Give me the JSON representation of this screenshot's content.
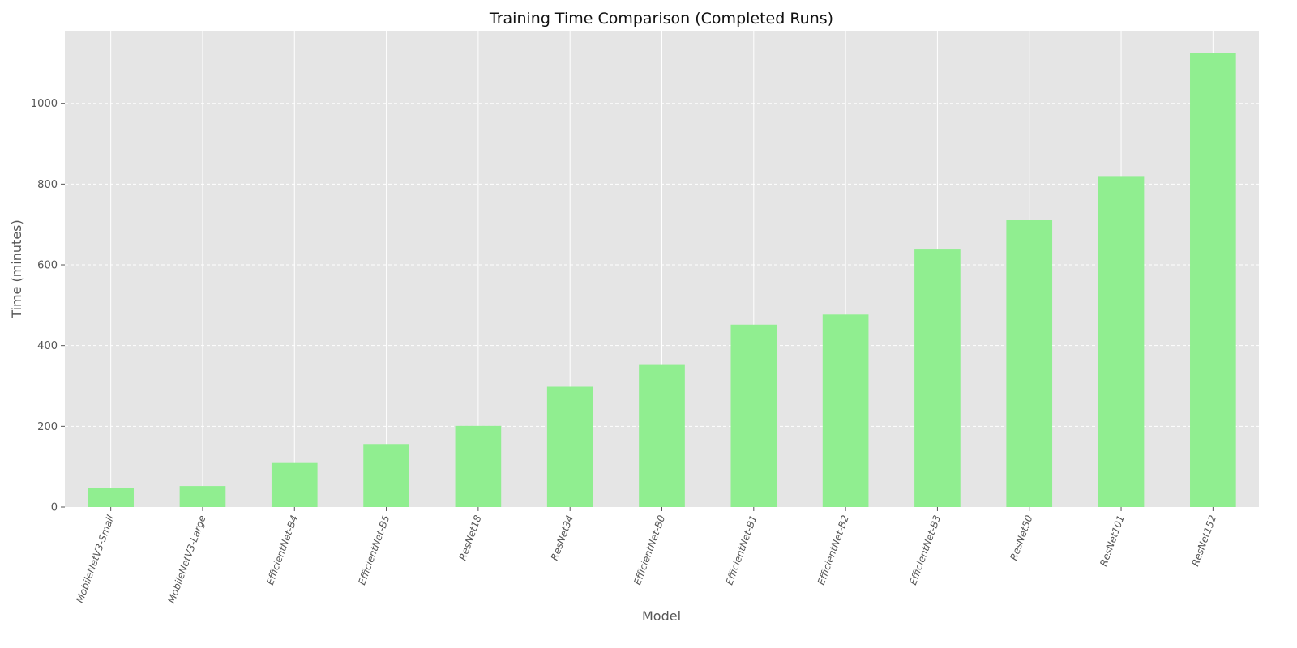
{
  "chart_data": {
    "type": "bar",
    "title": "Training Time Comparison (Completed Runs)",
    "xlabel": "Model",
    "ylabel": "Time (minutes)",
    "categories": [
      "MobileNetV3-Small",
      "MobileNetV3-Large",
      "EfficientNet-B4",
      "EfficientNet-B5",
      "ResNet18",
      "ResNet34",
      "EfficientNet-B0",
      "EfficientNet-B1",
      "EfficientNet-B2",
      "EfficientNet-B3",
      "ResNet50",
      "ResNet101",
      "ResNet152"
    ],
    "values": [
      47,
      52,
      111,
      156,
      201,
      298,
      352,
      452,
      477,
      638,
      711,
      820,
      1125
    ],
    "ylim": [
      0,
      1180
    ],
    "yticks": [
      0,
      200,
      400,
      600,
      800,
      1000
    ],
    "grid": true,
    "bar_color": "#90ee90",
    "background_color": "#e5e5e5"
  }
}
